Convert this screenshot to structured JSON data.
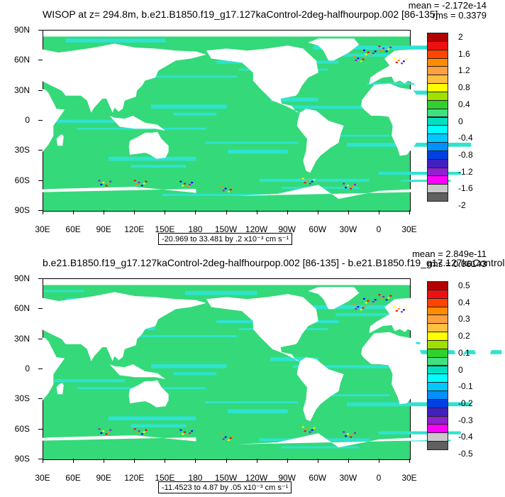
{
  "panels": [
    {
      "title": "WISOP at z= 294.8m, b.e21.B1850.f19_g17.127kaControl-2deg-halfhourpop.002 [86-135]",
      "mean": "mean = -2.172e-14",
      "rms": "rms = 0.3379",
      "range_text": "-20.969 to 33.481 by .2 x10⁻³ cm s⁻¹",
      "lat_labels": [
        "90N",
        "60N",
        "30N",
        "0",
        "30S",
        "60S",
        "90S"
      ],
      "lon_labels": [
        "30E",
        "60E",
        "90E",
        "120E",
        "150E",
        "180",
        "150W",
        "120W",
        "90W",
        "60W",
        "30W",
        "0",
        "30E"
      ],
      "colorbar_labels": [
        "2",
        "1.6",
        "1.2",
        "0.8",
        "0.4",
        "0",
        "-0.4",
        "-0.8",
        "-1.2",
        "-1.6",
        "-2"
      ]
    },
    {
      "title": "b.e21.B1850.f19_g17.127kaControl-2deg-halfhourpop.002 [86-135] - b.e21.B1850.f19_g17.127kaControl",
      "mean": "mean = 2.849e-11",
      "rms": "rms = 0.06143",
      "range_text": "-11.4523 to 4.87 by .05 x10⁻³ cm s⁻¹",
      "lat_labels": [
        "90N",
        "60N",
        "30N",
        "0",
        "30S",
        "60S",
        "90S"
      ],
      "lon_labels": [
        "30E",
        "60E",
        "90E",
        "120E",
        "150E",
        "180",
        "150W",
        "120W",
        "90W",
        "60W",
        "30W",
        "0",
        "30E"
      ],
      "colorbar_labels": [
        "0.5",
        "0.4",
        "0.3",
        "0.2",
        "0.1",
        "0",
        "-0.1",
        "-0.2",
        "-0.3",
        "-0.4",
        "-0.5"
      ]
    }
  ],
  "colorbar_colors": [
    "#b00000",
    "#ee1010",
    "#ff4500",
    "#ff8c00",
    "#ffa040",
    "#ffc040",
    "#ffff00",
    "#a0e000",
    "#30d030",
    "#40e080",
    "#00e0c0",
    "#00ffff",
    "#00c8ff",
    "#0090ff",
    "#0040e0",
    "#4020c0",
    "#9020d0",
    "#ff00ff",
    "#c8c8c8",
    "#606060"
  ],
  "palette": {
    "ocean": "#34d97a",
    "ocean_light": "#2fe3cf",
    "land": "#ffffff"
  }
}
